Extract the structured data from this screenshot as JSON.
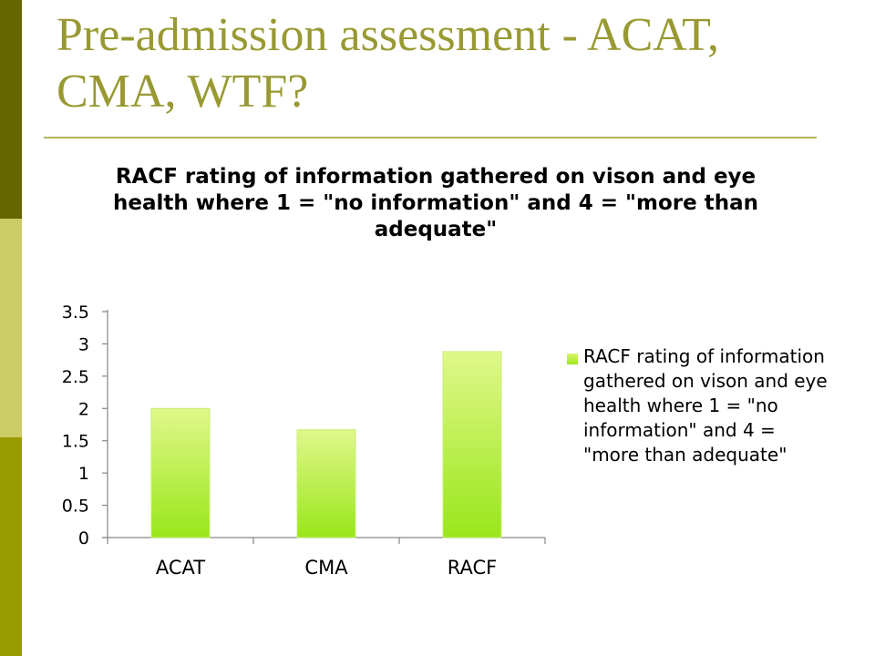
{
  "slide": {
    "title": "Pre-admission assessment - ACAT, CMA, WTF?"
  },
  "colors": {
    "stripe_dark": "#666600",
    "stripe_light": "#cccc66",
    "stripe_mid": "#999900",
    "title": "#999933",
    "bar_top": "#e0f88a",
    "bar_bottom": "#99e61a"
  },
  "chart_data": {
    "type": "bar",
    "title": "RACF rating of information gathered on vison and eye health where 1 = \"no information\" and 4 = \"more than adequate\"",
    "categories": [
      "ACAT",
      "CMA",
      "RACF"
    ],
    "series": [
      {
        "name": "RACF rating of information gathered on vison and eye health where 1 = \"no information\" and 4 = \"more than adequate\"",
        "values": [
          2.0,
          1.67,
          2.88
        ]
      }
    ],
    "xlabel": "",
    "ylabel": "",
    "ylim": [
      0,
      3.5
    ],
    "yticks": [
      "0",
      "0.5",
      "1",
      "1.5",
      "2",
      "2.5",
      "3",
      "3.5"
    ],
    "grid": false,
    "legend": "right"
  }
}
